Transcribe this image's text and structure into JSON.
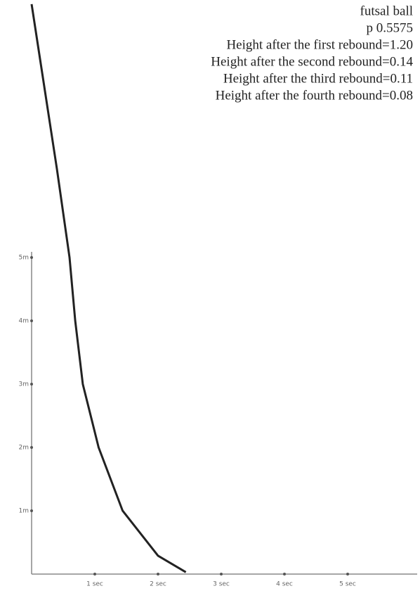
{
  "chart_data": {
    "type": "line",
    "annotations": [
      "futsal ball",
      "p 0.5575",
      "Height after the first rebound=1.20",
      "Height after the second rebound=0.14",
      "Height after the third rebound=0.11",
      "Height after the fourth rebound=0.08"
    ],
    "x": [
      0,
      0.2,
      0.4,
      0.6,
      0.69,
      0.81,
      1.06,
      1.44,
      2.0,
      2.44
    ],
    "series": [
      {
        "color": "#222222",
        "values": [
          9.0,
          7.7,
          6.4,
          5.0,
          4.0,
          3.0,
          2.0,
          1.0,
          0.29,
          0.03
        ]
      }
    ],
    "xlim": [
      0,
      6.1
    ],
    "ylim": [
      0,
      9.01
    ],
    "xticks": [
      {
        "value": 1,
        "label": "1 sec"
      },
      {
        "value": 2,
        "label": "2 sec"
      },
      {
        "value": 3,
        "label": "3 sec"
      },
      {
        "value": 4,
        "label": "4 sec"
      },
      {
        "value": 5,
        "label": "5 sec"
      }
    ],
    "yticks": [
      {
        "value": 1,
        "label": "1m"
      },
      {
        "value": 2,
        "label": "2m"
      },
      {
        "value": 3,
        "label": "3m"
      },
      {
        "value": 4,
        "label": "4m"
      },
      {
        "value": 5,
        "label": "5m"
      }
    ]
  }
}
